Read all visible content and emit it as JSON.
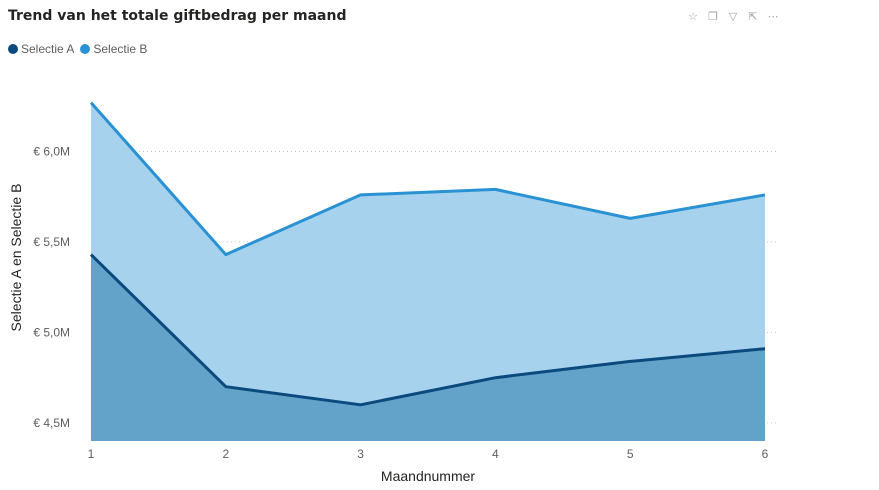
{
  "title": "Trend van het totale giftbedrag per maand",
  "toolbar": {
    "icons": [
      "pin-icon",
      "copy-icon",
      "filter-icon",
      "focus-mode-icon",
      "more-options-icon"
    ],
    "glyphs": [
      "☆",
      "❐",
      "▽",
      "⇱",
      "⋯"
    ]
  },
  "colors": {
    "series_a_line": "#0b4a7e",
    "series_a_fill": "#64a3c9",
    "series_b_line": "#2a92d2",
    "series_b_fill": "#a6d2ee",
    "gridline": "#c8c8c8"
  },
  "chart_data": {
    "type": "area",
    "x": [
      1,
      2,
      3,
      4,
      5,
      6
    ],
    "xlabel": "Maandnummer",
    "ylabel": "Selectie A en Selectie B",
    "ylim": [
      4.4,
      6.45
    ],
    "yticks": [
      4.5,
      5.0,
      5.5,
      6.0
    ],
    "ytick_labels": [
      "€ 4,5M",
      "€ 5,0M",
      "€ 5,5M",
      "€ 6,0M"
    ],
    "xtick_labels": [
      "1",
      "2",
      "3",
      "4",
      "5",
      "6"
    ],
    "grid": true,
    "legend_position": "top-left",
    "series": [
      {
        "name": "Selectie A",
        "values": [
          5.43,
          4.7,
          4.6,
          4.75,
          4.84,
          4.91
        ]
      },
      {
        "name": "Selectie B",
        "values": [
          6.27,
          5.43,
          5.76,
          5.79,
          5.63,
          5.76
        ]
      }
    ]
  }
}
